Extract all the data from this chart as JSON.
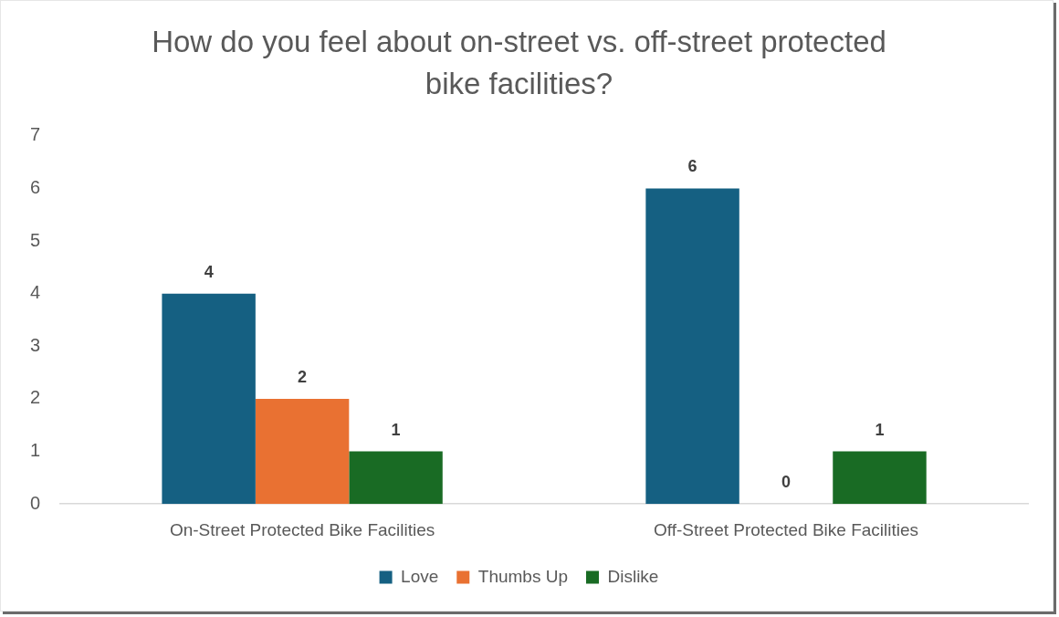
{
  "chart_data": {
    "type": "bar",
    "title": "How do you feel about on-street vs. off-street protected bike facilities?",
    "categories": [
      "On-Street Protected Bike Facilities",
      "Off-Street Protected Bike Facilities"
    ],
    "series": [
      {
        "name": "Love",
        "color": "#156082",
        "values": [
          4,
          6
        ]
      },
      {
        "name": "Thumbs Up",
        "color": "#e97132",
        "values": [
          2,
          0
        ]
      },
      {
        "name": "Dislike",
        "color": "#196b24",
        "values": [
          1,
          1
        ]
      }
    ],
    "ylim": [
      0,
      7
    ],
    "yticks": [
      0,
      1,
      2,
      3,
      4,
      5,
      6,
      7
    ],
    "grid": false,
    "legend": "bottom",
    "data_labels": true
  }
}
